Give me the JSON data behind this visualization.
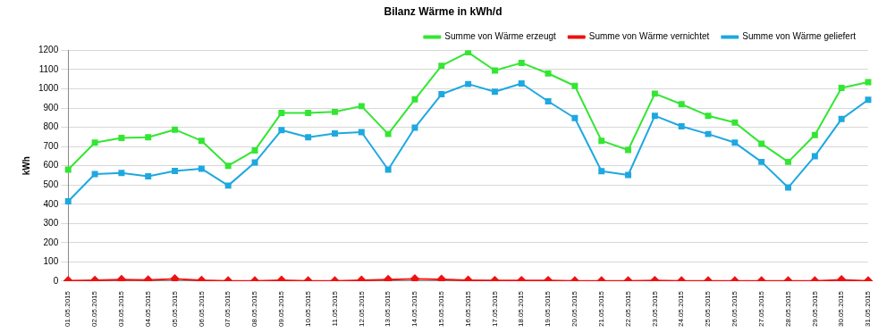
{
  "chart_data": {
    "type": "line",
    "title": "Bilanz Wärme in kWh/d",
    "ylabel": "kWh",
    "categories": [
      "01.05.2015",
      "02.05.2015",
      "03.05.2015",
      "04.05.2015",
      "05.05.2015",
      "06.05.2015",
      "07.05.2015",
      "08.05.2015",
      "09.05.2015",
      "10.05.2015",
      "11.05.2015",
      "12.05.2015",
      "13.05.2015",
      "14.05.2015",
      "15.05.2015",
      "16.05.2015",
      "17.05.2015",
      "18.05.2015",
      "19.05.2015",
      "20.05.2015",
      "21.05.2015",
      "22.05.2015",
      "23.05.2015",
      "24.05.2015",
      "25.05.2015",
      "26.05.2015",
      "27.05.2015",
      "28.05.2015",
      "29.05.2015",
      "30.05.2015",
      "31.05.2015"
    ],
    "series": [
      {
        "name": "Summe von Wärme erzeugt",
        "color": "#33e633",
        "marker": "square",
        "values": [
          580,
          720,
          745,
          748,
          788,
          730,
          600,
          680,
          875,
          875,
          880,
          910,
          765,
          945,
          1120,
          1190,
          1095,
          1135,
          1080,
          1015,
          730,
          682,
          975,
          920,
          860,
          825,
          715,
          620,
          760,
          1005,
          1035
        ]
      },
      {
        "name": "Summe von Wärme vernichtet",
        "color": "#ee1111",
        "marker": "diamond",
        "values": [
          2,
          4,
          8,
          6,
          12,
          4,
          1,
          1,
          5,
          1,
          1,
          5,
          8,
          12,
          9,
          5,
          3,
          3,
          3,
          1,
          1,
          1,
          3,
          1,
          1,
          1,
          1,
          1,
          1,
          7,
          1
        ]
      },
      {
        "name": "Summe von Wärme geliefert",
        "color": "#1ea8e0",
        "marker": "square",
        "values": [
          415,
          557,
          563,
          545,
          573,
          585,
          497,
          617,
          785,
          748,
          768,
          775,
          580,
          798,
          972,
          1025,
          985,
          1028,
          935,
          848,
          572,
          552,
          860,
          805,
          765,
          720,
          620,
          487,
          650,
          843,
          943
        ]
      }
    ],
    "ylim": [
      0,
      1200
    ],
    "yticks": [
      0,
      100,
      200,
      300,
      400,
      500,
      600,
      700,
      800,
      900,
      1000,
      1100,
      1200
    ],
    "grid": "y",
    "legend": "top right",
    "line_style": "solid"
  }
}
